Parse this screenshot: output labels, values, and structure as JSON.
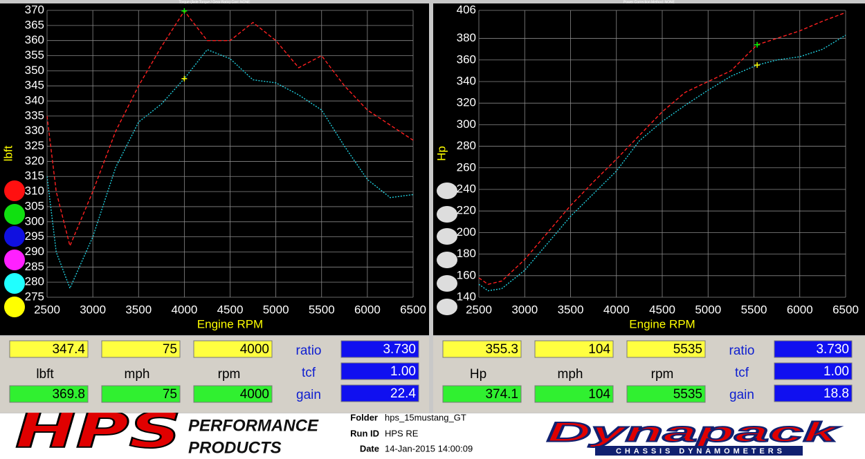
{
  "chart_data": [
    {
      "type": "line",
      "title": "Torque (Axle Torque / Gear Ratio)   Corr: NONE",
      "x_label": "Engine RPM",
      "y_label": "lbft",
      "x": [
        2500,
        2600,
        2750,
        3000,
        3250,
        3500,
        3750,
        4000,
        4250,
        4500,
        4750,
        5000,
        5250,
        5500,
        5750,
        6000,
        6250,
        6500
      ],
      "series": [
        {
          "color": "#ff2020",
          "cursor_color": "#00ff00",
          "values": [
            335,
            310,
            292,
            310,
            330,
            345,
            358,
            369.8,
            360,
            360,
            366,
            360,
            351,
            355,
            345,
            337,
            332,
            327
          ]
        },
        {
          "color": "#20d0e0",
          "cursor_color": "#ffff00",
          "values": [
            315,
            290,
            278,
            295,
            318,
            333,
            339,
            347.4,
            357,
            354,
            347,
            346,
            342,
            337,
            325,
            314,
            308,
            309
          ]
        }
      ],
      "cursor_x": 4000,
      "xlim": [
        2500,
        6500
      ],
      "xticks": [
        2500,
        3000,
        3500,
        4000,
        4500,
        5000,
        5500,
        6000,
        6500
      ],
      "ylim": [
        275,
        370
      ],
      "yticks": [
        275,
        280,
        285,
        290,
        295,
        300,
        305,
        310,
        315,
        320,
        325,
        330,
        335,
        340,
        345,
        350,
        355,
        360,
        365,
        370
      ],
      "grid": true
    },
    {
      "type": "line",
      "title": "Power    Correction Method: NONE",
      "x_label": "Engine RPM",
      "y_label": "Hp",
      "x": [
        2500,
        2600,
        2750,
        3000,
        3250,
        3500,
        3750,
        4000,
        4250,
        4500,
        4750,
        5000,
        5250,
        5535,
        5750,
        6000,
        6250,
        6500
      ],
      "series": [
        {
          "color": "#ff2020",
          "cursor_color": "#00ff00",
          "values": [
            158,
            152,
            155,
            175,
            200,
            225,
            247,
            268,
            290,
            312,
            330,
            340,
            350,
            374.1,
            380,
            387,
            396,
            404
          ]
        },
        {
          "color": "#20d0e0",
          "cursor_color": "#ffff00",
          "values": [
            152,
            146,
            148,
            165,
            190,
            215,
            236,
            257,
            285,
            303,
            318,
            332,
            345,
            355.3,
            360,
            363,
            370,
            383
          ]
        }
      ],
      "cursor_x": 5535,
      "xlim": [
        2500,
        6500
      ],
      "xticks": [
        2500,
        3000,
        3500,
        4000,
        4500,
        5000,
        5500,
        6000,
        6500
      ],
      "ylim": [
        140,
        406
      ],
      "yticks": [
        140,
        160,
        180,
        200,
        220,
        240,
        260,
        280,
        300,
        320,
        340,
        360,
        380,
        406
      ],
      "grid": true
    }
  ],
  "readouts": [
    {
      "top": [
        "347.4",
        "75",
        "4000"
      ],
      "units": [
        "lbft",
        "mph",
        "rpm"
      ],
      "bottom": [
        "369.8",
        "75",
        "4000"
      ],
      "params": [
        {
          "label": "ratio",
          "value": "3.730"
        },
        {
          "label": "tcf",
          "value": "1.00"
        },
        {
          "label": "gain",
          "value": "22.4"
        }
      ]
    },
    {
      "top": [
        "355.3",
        "104",
        "5535"
      ],
      "units": [
        "Hp",
        "mph",
        "rpm"
      ],
      "bottom": [
        "374.1",
        "104",
        "5535"
      ],
      "params": [
        {
          "label": "ratio",
          "value": "3.730"
        },
        {
          "label": "tcf",
          "value": "1.00"
        },
        {
          "label": "gain",
          "value": "18.8"
        }
      ]
    }
  ],
  "footer": {
    "brand": "HPS",
    "brand_sub": [
      "PERFORMANCE",
      "PRODUCTS"
    ],
    "info": [
      {
        "label": "Folder",
        "value": "hps_15mustang_GT"
      },
      {
        "label": "Run ID",
        "value": "HPS RE"
      },
      {
        "label": "Date",
        "value": "14-Jan-2015  14:00:09"
      }
    ],
    "dyno": "Dynapack",
    "dyno_sub": "CHASSIS DYNAMOMETERS"
  }
}
